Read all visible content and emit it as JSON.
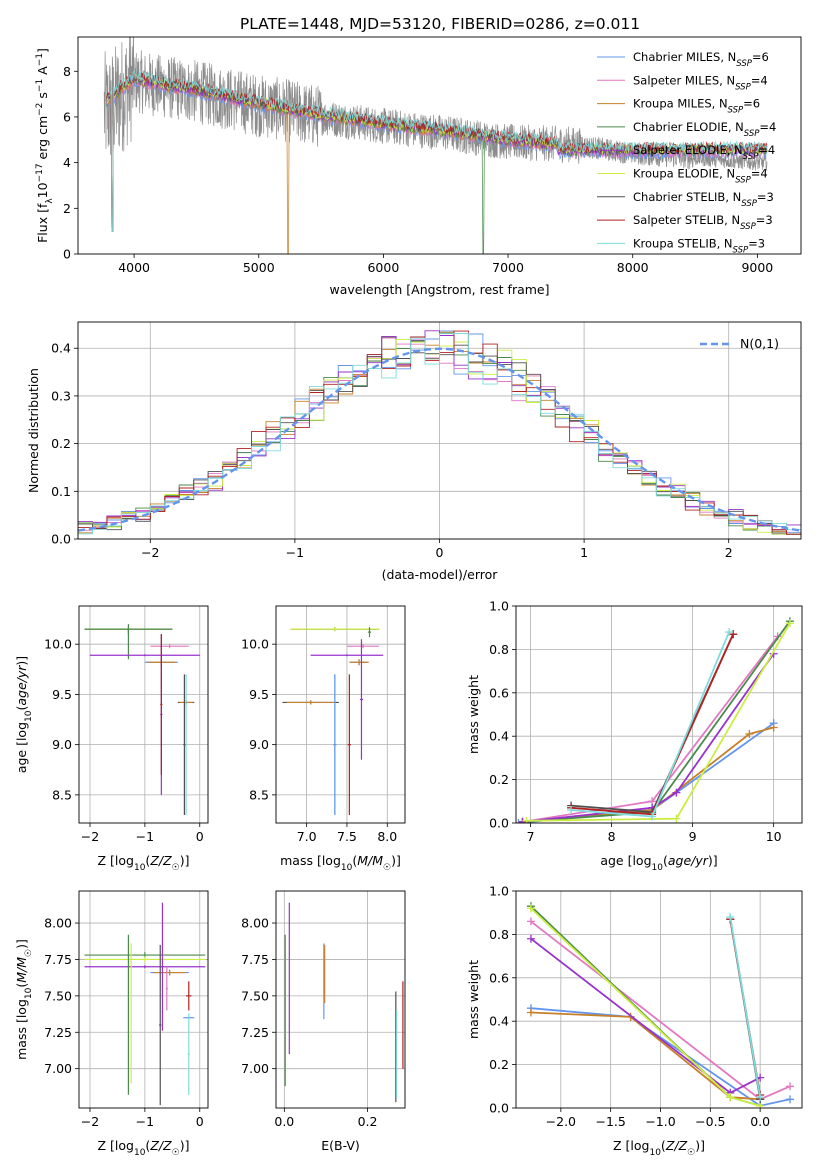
{
  "figure_title": "PLATE=1448, MJD=53120, FIBERID=0286, z=0.011",
  "series_colors": [
    "#6495ed",
    "#e377c2",
    "#c8802a",
    "#4a8a4a",
    "#9932cc",
    "#ccee44",
    "#505050",
    "#b22222",
    "#7fdcdc"
  ],
  "chart_data": [
    {
      "id": "spectrum",
      "type": "line",
      "title": "PLATE=1448, MJD=53120, FIBERID=0286, z=0.011",
      "xlabel": "wavelength [Angstrom, rest frame]",
      "ylabel": "Flux [f_λ 10^-17 erg cm^-2 s^-1 A^-1]",
      "xlim": [
        3550,
        9350
      ],
      "ylim": [
        0,
        9.5
      ],
      "xticks": [
        4000,
        5000,
        6000,
        7000,
        8000,
        9000
      ],
      "yticks": [
        0,
        2,
        4,
        6,
        8
      ],
      "grid": false,
      "legend": "top-right",
      "data_envelope": {
        "x": [
          3800,
          4000,
          4250,
          4500,
          4750,
          5000,
          5500,
          6000,
          6500,
          7000,
          7500,
          8000,
          8500,
          9000
        ],
        "y": [
          7.2,
          8.5,
          8.2,
          8.0,
          7.7,
          7.4,
          6.9,
          6.5,
          6.2,
          5.8,
          5.7,
          5.3,
          5.1,
          4.9
        ]
      },
      "model_envelope": {
        "x": [
          3780,
          3900,
          4000,
          4250,
          4500,
          4750,
          5000,
          5500,
          6000,
          6500,
          7000,
          7400
        ],
        "y": [
          7.6,
          8.2,
          8.6,
          8.3,
          8.1,
          7.8,
          7.5,
          7.0,
          6.6,
          6.3,
          5.9,
          5.7
        ]
      },
      "series": [
        {
          "name": "Chabrier MILES, N_SSP=6"
        },
        {
          "name": "Salpeter MILES, N_SSP=4"
        },
        {
          "name": "Kroupa MILES, N_SSP=6"
        },
        {
          "name": "Chabrier ELODIE, N_SSP=4"
        },
        {
          "name": "Salpeter ELODIE, N_SSP=4"
        },
        {
          "name": "Kroupa ELODIE, N_SSP=4"
        },
        {
          "name": "Chabrier STELIB, N_SSP=3"
        },
        {
          "name": "Salpeter STELIB, N_SSP=3"
        },
        {
          "name": "Kroupa STELIB, N_SSP=3"
        }
      ]
    },
    {
      "id": "residuals",
      "type": "line",
      "xlabel": "(data-model)/error",
      "ylabel": "Normed distribution",
      "xlim": [
        -2.5,
        2.5
      ],
      "ylim": [
        0,
        0.455
      ],
      "xticks": [
        -2,
        -1,
        0,
        1,
        2
      ],
      "yticks": [
        0.0,
        0.1,
        0.2,
        0.3,
        0.4
      ],
      "grid": true,
      "legend": "top-right",
      "legend_label": "N(0,1)",
      "bin_width": 0.1
    },
    {
      "id": "age_vs_Z",
      "type": "scatter",
      "xlabel": "Z [log10(Z/Z☉)]",
      "ylabel": "age [log10(age/yr)]",
      "xlim": [
        -2.2,
        0.15
      ],
      "ylim": [
        8.22,
        10.38
      ],
      "xticks": [
        -2,
        -1,
        0
      ],
      "yticks": [
        8.5,
        9.0,
        9.5,
        10.0
      ],
      "grid": true,
      "points": [
        {
          "s": 6,
          "x": -1.3,
          "xe": 0.8,
          "y": 10.15,
          "ye": 0.02
        },
        {
          "s": 5,
          "x": -1.3,
          "xe": 0.8,
          "y": 10.15,
          "ye": 0.02
        },
        {
          "s": 3,
          "x": -1.3,
          "xe": 0.8,
          "y": 10.15,
          "ye": 0.05
        },
        {
          "s": 3,
          "x": -1.3,
          "xe": 0.0,
          "y": 10.0,
          "ye": 0.15
        },
        {
          "s": 4,
          "x": -1.0,
          "xe": 1.0,
          "y": 9.89,
          "ye": 0.01
        },
        {
          "s": 1,
          "x": -0.55,
          "xe": 0.35,
          "y": 9.98,
          "ye": 0.02
        },
        {
          "s": 0,
          "x": -0.7,
          "xe": 0.3,
          "y": 9.82,
          "ye": 0.03
        },
        {
          "s": 2,
          "x": -0.7,
          "xe": 0.25,
          "y": 9.82,
          "ye": 0.03
        },
        {
          "s": 4,
          "x": -0.7,
          "xe": 0.02,
          "y": 9.3,
          "ye": 0.8
        },
        {
          "s": 7,
          "x": -0.7,
          "xe": 0.02,
          "y": 9.4,
          "ye": 0.7
        },
        {
          "s": 6,
          "x": -0.25,
          "xe": 0.15,
          "y": 9.42,
          "ye": 0.02
        },
        {
          "s": 2,
          "x": -0.25,
          "xe": 0.12,
          "y": 9.42,
          "ye": 0.02
        },
        {
          "s": 8,
          "x": -0.25,
          "xe": 0.02,
          "y": 9.0,
          "ye": 0.7
        },
        {
          "s": 6,
          "x": -0.28,
          "xe": 0.02,
          "y": 9.0,
          "ye": 0.7
        }
      ]
    },
    {
      "id": "age_vs_mass",
      "type": "scatter",
      "xlabel": "mass [log10(M/M☉)]",
      "ylabel": "",
      "xlim": [
        6.62,
        8.22
      ],
      "ylim": [
        8.22,
        10.38
      ],
      "xticks": [
        7.0,
        7.5,
        8.0
      ],
      "yticks": [
        8.5,
        9.0,
        9.5,
        10.0
      ],
      "grid": true,
      "points": [
        {
          "s": 6,
          "x": 7.35,
          "xe": 0.55,
          "y": 10.15,
          "ye": 0.02
        },
        {
          "s": 5,
          "x": 7.35,
          "xe": 0.55,
          "y": 10.15,
          "ye": 0.02
        },
        {
          "s": 3,
          "x": 7.78,
          "xe": 0.02,
          "y": 10.12,
          "ye": 0.05
        },
        {
          "s": 4,
          "x": 7.5,
          "xe": 0.45,
          "y": 9.89,
          "ye": 0.01
        },
        {
          "s": 1,
          "x": 7.7,
          "xe": 0.2,
          "y": 9.98,
          "ye": 0.02
        },
        {
          "s": 0,
          "x": 7.65,
          "xe": 0.1,
          "y": 9.82,
          "ye": 0.03
        },
        {
          "s": 2,
          "x": 7.65,
          "xe": 0.12,
          "y": 9.82,
          "ye": 0.03
        },
        {
          "s": 6,
          "x": 7.05,
          "xe": 0.35,
          "y": 9.42,
          "ye": 0.02
        },
        {
          "s": 2,
          "x": 7.05,
          "xe": 0.3,
          "y": 9.42,
          "ye": 0.02
        },
        {
          "s": 8,
          "x": 7.35,
          "xe": 0.02,
          "y": 9.0,
          "ye": 0.7
        },
        {
          "s": 0,
          "x": 7.35,
          "xe": 0.02,
          "y": 9.0,
          "ye": 0.7
        },
        {
          "s": 7,
          "x": 7.53,
          "xe": 0.02,
          "y": 9.0,
          "ye": 0.7
        },
        {
          "s": 4,
          "x": 7.68,
          "xe": 0.02,
          "y": 9.45,
          "ye": 0.6
        }
      ]
    },
    {
      "id": "massweight_vs_age",
      "type": "line",
      "xlabel": "age [log10(age/yr)]",
      "ylabel": "mass weight",
      "xlim": [
        6.82,
        10.35
      ],
      "ylim": [
        0,
        1.0
      ],
      "xticks": [
        7,
        8,
        9,
        10
      ],
      "yticks": [
        0.0,
        0.2,
        0.4,
        0.6,
        0.8,
        1.0
      ],
      "grid": true,
      "series": [
        {
          "s": 0,
          "x": [
            6.85,
            8.5,
            10.0
          ],
          "y": [
            0.0,
            0.06,
            0.46
          ]
        },
        {
          "s": 1,
          "x": [
            6.9,
            8.5,
            10.05
          ],
          "y": [
            0.005,
            0.1,
            0.86
          ]
        },
        {
          "s": 2,
          "x": [
            6.9,
            8.5,
            9.7,
            10.0
          ],
          "y": [
            0.005,
            0.06,
            0.41,
            0.44
          ]
        },
        {
          "s": 3,
          "x": [
            6.9,
            8.5,
            10.2
          ],
          "y": [
            0.005,
            0.05,
            0.93
          ]
        },
        {
          "s": 4,
          "x": [
            6.9,
            8.5,
            8.8,
            10.0
          ],
          "y": [
            0.005,
            0.07,
            0.14,
            0.78
          ]
        },
        {
          "s": 5,
          "x": [
            6.95,
            8.8,
            10.2
          ],
          "y": [
            0.01,
            0.02,
            0.92
          ]
        },
        {
          "s": 6,
          "x": [
            7.5,
            8.5,
            9.5
          ],
          "y": [
            0.08,
            0.05,
            0.87
          ]
        },
        {
          "s": 7,
          "x": [
            7.5,
            8.5,
            9.5
          ],
          "y": [
            0.07,
            0.04,
            0.87
          ]
        },
        {
          "s": 8,
          "x": [
            7.5,
            8.5,
            9.45
          ],
          "y": [
            0.06,
            0.03,
            0.88
          ]
        }
      ]
    },
    {
      "id": "mass_vs_Z",
      "type": "scatter",
      "xlabel": "Z [log10(Z/Z☉)]",
      "ylabel": "mass [log10(M/M☉)]",
      "xlim": [
        -2.2,
        0.15
      ],
      "ylim": [
        6.73,
        8.22
      ],
      "xticks": [
        -2,
        -1,
        0
      ],
      "yticks": [
        7.0,
        7.25,
        7.5,
        7.75,
        8.0
      ],
      "grid": true,
      "points": [
        {
          "s": 3,
          "x": -1.0,
          "xe": 1.1,
          "y": 7.78,
          "ye": 0.02
        },
        {
          "s": 5,
          "x": -1.0,
          "xe": 1.1,
          "y": 7.75,
          "ye": 0.02
        },
        {
          "s": 4,
          "x": -1.0,
          "xe": 1.1,
          "y": 7.7,
          "ye": 0.01
        },
        {
          "s": 3,
          "x": -1.3,
          "xe": 0.0,
          "y": 7.37,
          "ye": 0.55
        },
        {
          "s": 5,
          "x": -1.25,
          "xe": 0.0,
          "y": 7.38,
          "ye": 0.48
        },
        {
          "s": 0,
          "x": -0.55,
          "xe": 0.35,
          "y": 7.66,
          "ye": 0.02
        },
        {
          "s": 2,
          "x": -0.55,
          "xe": 0.3,
          "y": 7.66,
          "ye": 0.02
        },
        {
          "s": 4,
          "x": -0.68,
          "xe": 0.02,
          "y": 7.7,
          "ye": 0.44
        },
        {
          "s": 1,
          "x": -0.6,
          "xe": 0.02,
          "y": 7.55,
          "ye": 0.15
        },
        {
          "s": 6,
          "x": -0.72,
          "xe": 0.02,
          "y": 7.3,
          "ye": 0.55
        },
        {
          "s": 7,
          "x": -0.2,
          "xe": 0.05,
          "y": 7.5,
          "ye": 0.1
        },
        {
          "s": 0,
          "x": -0.2,
          "xe": 0.1,
          "y": 7.35,
          "ye": 0.01
        },
        {
          "s": 8,
          "x": -0.2,
          "xe": 0.02,
          "y": 7.1,
          "ye": 0.28
        }
      ]
    },
    {
      "id": "mass_vs_EBV",
      "type": "scatter",
      "xlabel": "E(B-V)",
      "ylabel": "",
      "xlim": [
        -0.02,
        0.29
      ],
      "ylim": [
        6.73,
        8.22
      ],
      "xticks": [
        0.0,
        0.2
      ],
      "yticks": [
        7.0,
        7.25,
        7.5,
        7.75,
        8.0
      ],
      "grid": true,
      "points": [
        {
          "s": 5,
          "x": 0.002,
          "xe": 0.0,
          "y": 7.38,
          "ye": 0.5
        },
        {
          "s": 3,
          "x": 0.002,
          "xe": 0.0,
          "y": 7.4,
          "ye": 0.52
        },
        {
          "s": 4,
          "x": 0.012,
          "xe": 0.0,
          "y": 7.62,
          "ye": 0.52
        },
        {
          "s": 0,
          "x": 0.095,
          "xe": 0.0,
          "y": 7.6,
          "ye": 0.26
        },
        {
          "s": 2,
          "x": 0.097,
          "xe": 0.0,
          "y": 7.65,
          "ye": 0.2
        },
        {
          "s": 6,
          "x": 0.268,
          "xe": 0.0,
          "y": 7.15,
          "ye": 0.38
        },
        {
          "s": 8,
          "x": 0.27,
          "xe": 0.0,
          "y": 7.1,
          "ye": 0.3
        },
        {
          "s": 7,
          "x": 0.285,
          "xe": 0.0,
          "y": 7.3,
          "ye": 0.3
        }
      ]
    },
    {
      "id": "massweight_vs_Z",
      "type": "line",
      "xlabel": "Z [log10(Z/Z☉)]",
      "ylabel": "mass weight",
      "xlim": [
        -2.45,
        0.42
      ],
      "ylim": [
        0,
        1.0
      ],
      "xticks": [
        -2.0,
        -1.5,
        -1.0,
        -0.5,
        0.0
      ],
      "yticks": [
        0.0,
        0.2,
        0.4,
        0.6,
        0.8,
        1.0
      ],
      "grid": true,
      "series": [
        {
          "s": 0,
          "x": [
            -2.3,
            -1.3,
            0.0,
            0.3
          ],
          "y": [
            0.46,
            0.42,
            0.01,
            0.04
          ]
        },
        {
          "s": 1,
          "x": [
            -2.3,
            0.0,
            0.3
          ],
          "y": [
            0.86,
            0.04,
            0.1
          ]
        },
        {
          "s": 2,
          "x": [
            -2.3,
            -1.3,
            -0.3,
            0.0
          ],
          "y": [
            0.44,
            0.42,
            0.05,
            0.04
          ]
        },
        {
          "s": 3,
          "x": [
            -2.3,
            -0.3,
            0.0
          ],
          "y": [
            0.93,
            0.05,
            0.01
          ]
        },
        {
          "s": 4,
          "x": [
            -2.3,
            -0.3,
            0.0
          ],
          "y": [
            0.78,
            0.07,
            0.14
          ]
        },
        {
          "s": 5,
          "x": [
            -2.3,
            -0.3,
            0.0
          ],
          "y": [
            0.92,
            0.05,
            0.01
          ]
        },
        {
          "s": 6,
          "x": [
            -0.3,
            0.0
          ],
          "y": [
            0.87,
            0.04
          ]
        },
        {
          "s": 7,
          "x": [
            -0.3,
            0.0
          ],
          "y": [
            0.87,
            0.06
          ]
        },
        {
          "s": 8,
          "x": [
            -0.3,
            0.0
          ],
          "y": [
            0.88,
            0.05
          ]
        }
      ]
    }
  ]
}
